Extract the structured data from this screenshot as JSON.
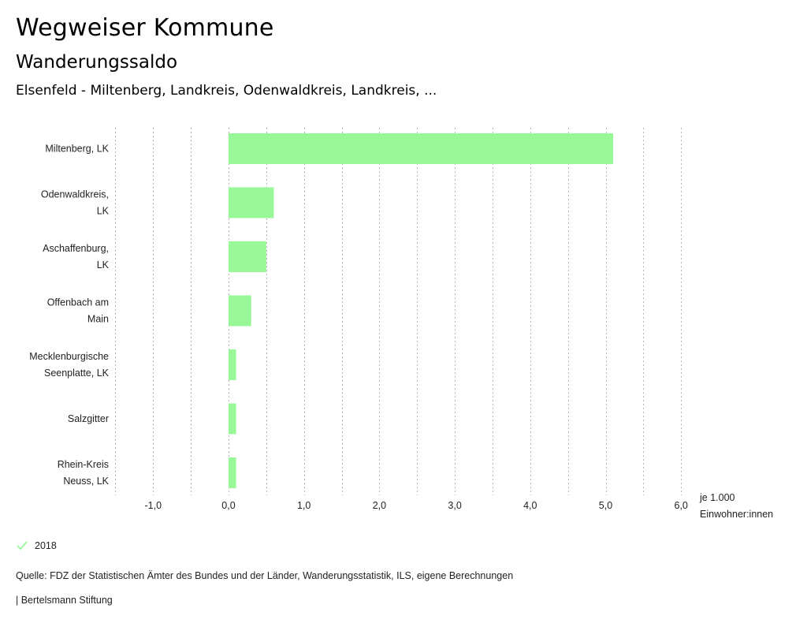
{
  "header": {
    "title": "Wegweiser Kommune",
    "subtitle": "Wanderungssaldo",
    "region": "Elsenfeld - Miltenberg, Landkreis, Odenwaldkreis, Landkreis, ..."
  },
  "legend": {
    "items": [
      {
        "label": "2018",
        "icon": "check-icon",
        "color": "#98f898"
      }
    ]
  },
  "footer": {
    "source": "Quelle: FDZ der Statistischen Ämter des Bundes und der Länder, Wanderungsstatistik, ILS, eigene Berechnungen",
    "brand": "| Bertelsmann Stiftung"
  },
  "chart_data": {
    "type": "bar",
    "orientation": "horizontal",
    "title": "Wanderungssaldo",
    "xlabel": "je 1.000 Einwohner:innen",
    "unit_lines": [
      "je 1.000",
      "Einwohner:innen"
    ],
    "ylabel": "",
    "categories": [
      [
        "Miltenberg, LK"
      ],
      [
        "Odenwaldkreis,",
        "LK"
      ],
      [
        "Aschaffenburg,",
        "LK"
      ],
      [
        "Offenbach am",
        "Main"
      ],
      [
        "Mecklenburgische",
        "Seenplatte, LK"
      ],
      [
        "Salzgitter"
      ],
      [
        "Rhein-Kreis",
        "Neuss, LK"
      ]
    ],
    "series": [
      {
        "name": "2018",
        "color": "#98f898",
        "values": [
          5.1,
          0.6,
          0.5,
          0.3,
          0.1,
          0.1,
          0.1
        ]
      }
    ],
    "xlim": [
      -1.5,
      6.0
    ],
    "xticks": [
      -1.0,
      0.0,
      1.0,
      2.0,
      3.0,
      4.0,
      5.0,
      6.0
    ],
    "xtick_labels": [
      "-1,0",
      "0,0",
      "1,0",
      "2,0",
      "3,0",
      "4,0",
      "5,0",
      "6,0"
    ],
    "grid_step": 0.5,
    "grid": true,
    "legend_position": "bottom-left"
  }
}
